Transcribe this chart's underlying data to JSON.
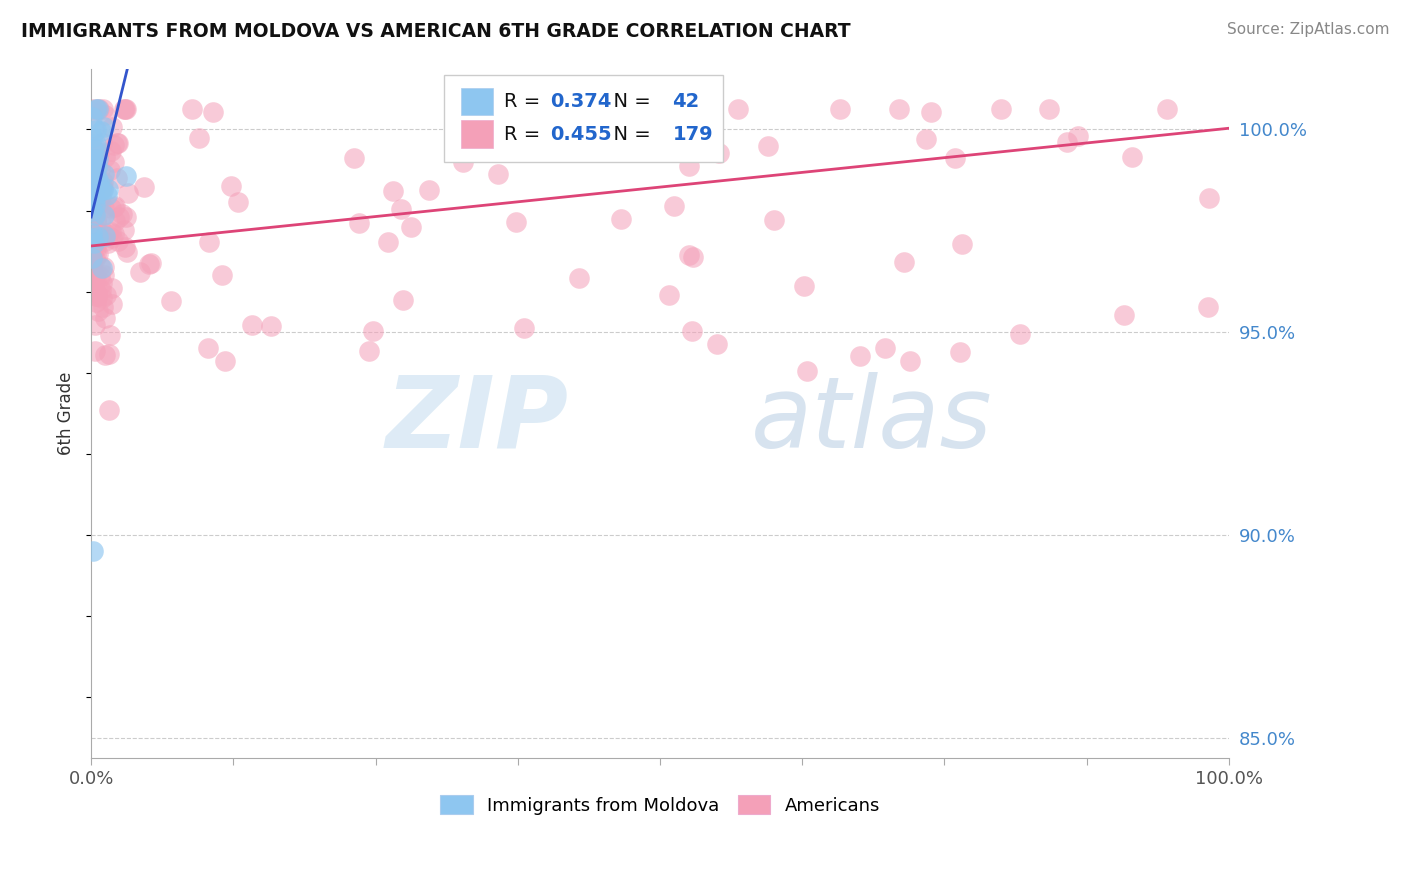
{
  "title": "IMMIGRANTS FROM MOLDOVA VS AMERICAN 6TH GRADE CORRELATION CHART",
  "source_text": "Source: ZipAtlas.com",
  "ylabel": "6th Grade",
  "legend_label_blue": "Immigrants from Moldova",
  "legend_label_pink": "Americans",
  "R_blue": 0.374,
  "N_blue": 42,
  "R_pink": 0.455,
  "N_pink": 179,
  "color_blue": "#8ec6f0",
  "color_pink": "#f4a0b8",
  "line_color_blue": "#3355cc",
  "line_color_pink": "#dd4477",
  "watermark_zip": "ZIP",
  "watermark_atlas": "atlas",
  "xlim": [
    0.0,
    1.0
  ],
  "ylim": [
    0.845,
    1.015
  ],
  "ytick_right_labels": [
    "85.0%",
    "90.0%",
    "95.0%",
    "100.0%"
  ],
  "ytick_right_values": [
    0.85,
    0.9,
    0.95,
    1.0
  ],
  "blue_seed": 77,
  "pink_seed": 55
}
